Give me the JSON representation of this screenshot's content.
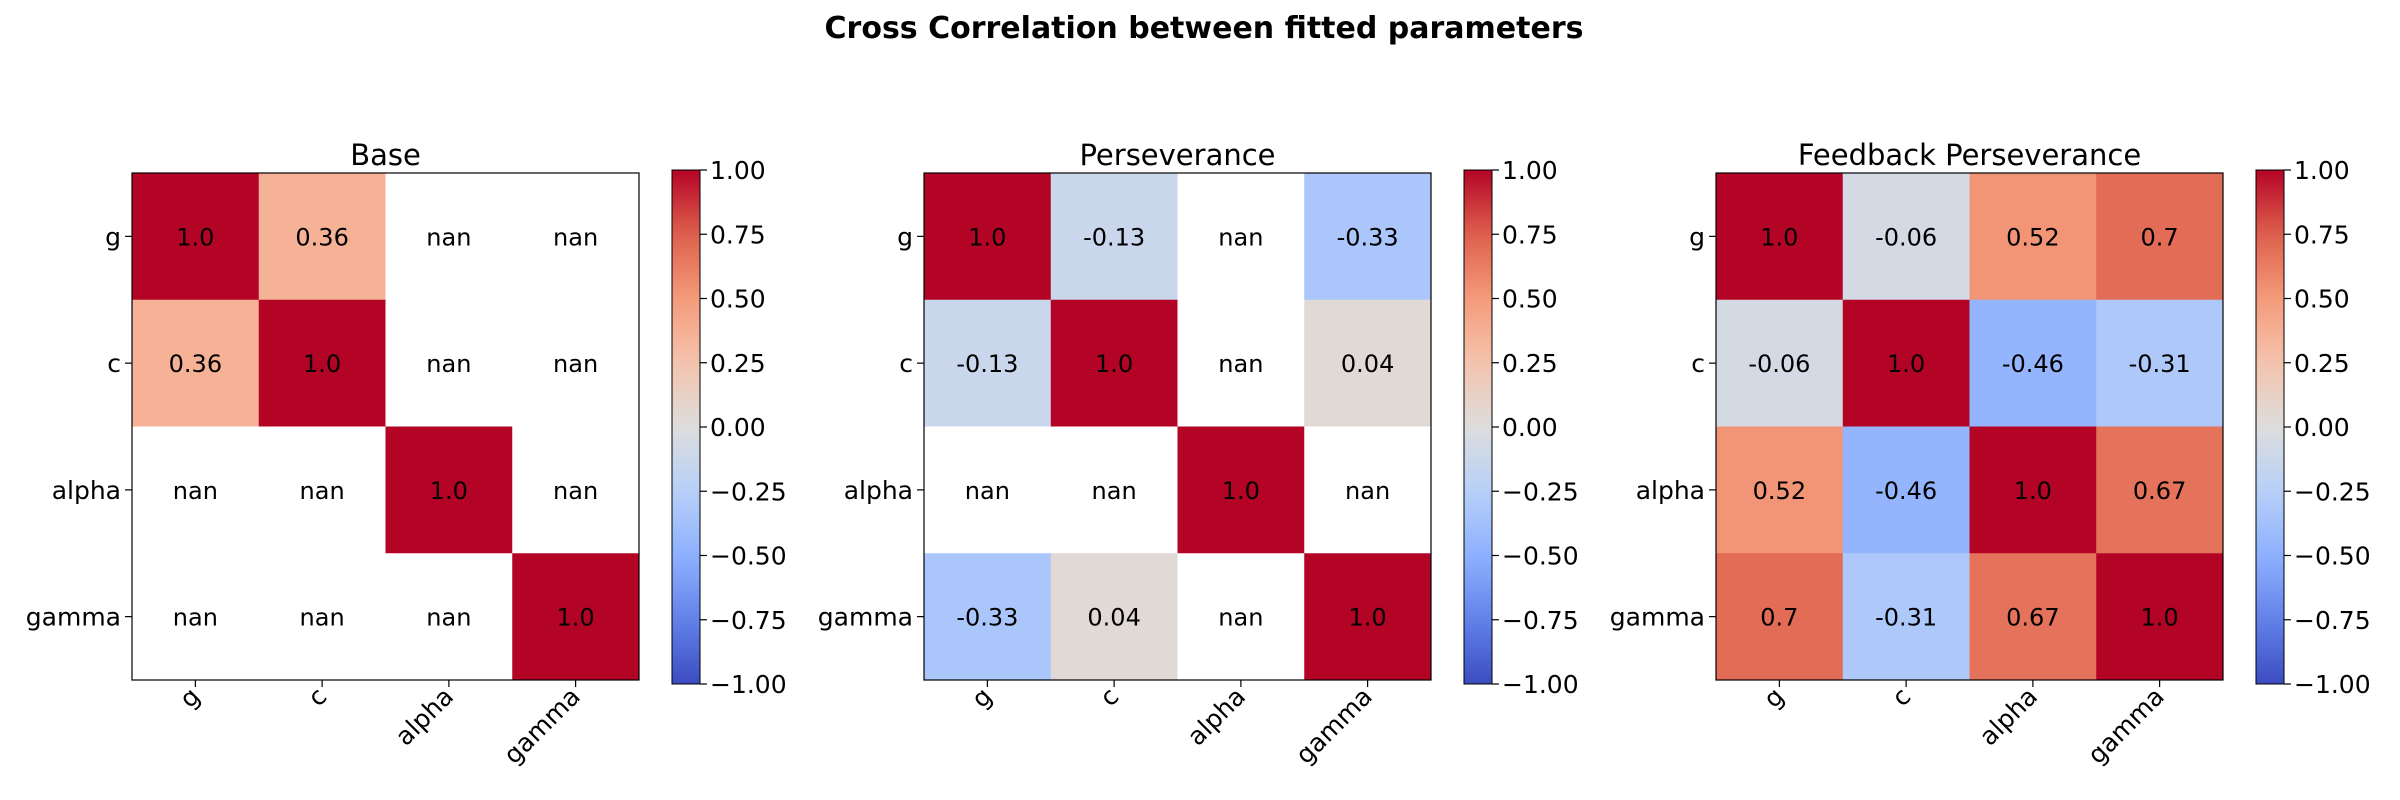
{
  "suptitle": "Cross Correlation between fitted parameters",
  "colorscale": {
    "name": "coolwarm",
    "min": -1.0,
    "max": 1.0,
    "ticks": [
      "1.00",
      "0.75",
      "0.50",
      "0.25",
      "0.00",
      "−0.25",
      "−0.50",
      "−0.75",
      "−1.00"
    ],
    "nan_color": "#ffffff"
  },
  "chart_data": [
    {
      "type": "heatmap",
      "title": "Base",
      "row_labels": [
        "g",
        "c",
        "alpha",
        "gamma"
      ],
      "col_labels": [
        "g",
        "c",
        "alpha",
        "gamma"
      ],
      "values": [
        [
          1.0,
          0.36,
          null,
          null
        ],
        [
          0.36,
          1.0,
          null,
          null
        ],
        [
          null,
          null,
          1.0,
          null
        ],
        [
          null,
          null,
          null,
          1.0
        ]
      ],
      "cell_labels": [
        [
          "1.0",
          "0.36",
          "nan",
          "nan"
        ],
        [
          "0.36",
          "1.0",
          "nan",
          "nan"
        ],
        [
          "nan",
          "nan",
          "1.0",
          "nan"
        ],
        [
          "nan",
          "nan",
          "nan",
          "1.0"
        ]
      ],
      "vmin": -1.0,
      "vmax": 1.0,
      "colorbar": true
    },
    {
      "type": "heatmap",
      "title": "Perseverance",
      "row_labels": [
        "g",
        "c",
        "alpha",
        "gamma"
      ],
      "col_labels": [
        "g",
        "c",
        "alpha",
        "gamma"
      ],
      "values": [
        [
          1.0,
          -0.13,
          null,
          -0.33
        ],
        [
          -0.13,
          1.0,
          null,
          0.04
        ],
        [
          null,
          null,
          1.0,
          null
        ],
        [
          -0.33,
          0.04,
          null,
          1.0
        ]
      ],
      "cell_labels": [
        [
          "1.0",
          "-0.13",
          "nan",
          "-0.33"
        ],
        [
          "-0.13",
          "1.0",
          "nan",
          "0.04"
        ],
        [
          "nan",
          "nan",
          "1.0",
          "nan"
        ],
        [
          "-0.33",
          "0.04",
          "nan",
          "1.0"
        ]
      ],
      "vmin": -1.0,
      "vmax": 1.0,
      "colorbar": true
    },
    {
      "type": "heatmap",
      "title": "Feedback Perseverance",
      "row_labels": [
        "g",
        "c",
        "alpha",
        "gamma"
      ],
      "col_labels": [
        "g",
        "c",
        "alpha",
        "gamma"
      ],
      "values": [
        [
          1.0,
          -0.06,
          0.52,
          0.7
        ],
        [
          -0.06,
          1.0,
          -0.46,
          -0.31
        ],
        [
          0.52,
          -0.46,
          1.0,
          0.67
        ],
        [
          0.7,
          -0.31,
          0.67,
          1.0
        ]
      ],
      "cell_labels": [
        [
          "1.0",
          "-0.06",
          "0.52",
          "0.7"
        ],
        [
          "-0.06",
          "1.0",
          "-0.46",
          "-0.31"
        ],
        [
          "0.52",
          "-0.46",
          "1.0",
          "0.67"
        ],
        [
          "0.7",
          "-0.31",
          "0.67",
          "1.0"
        ]
      ],
      "vmin": -1.0,
      "vmax": 1.0,
      "colorbar": true
    }
  ]
}
